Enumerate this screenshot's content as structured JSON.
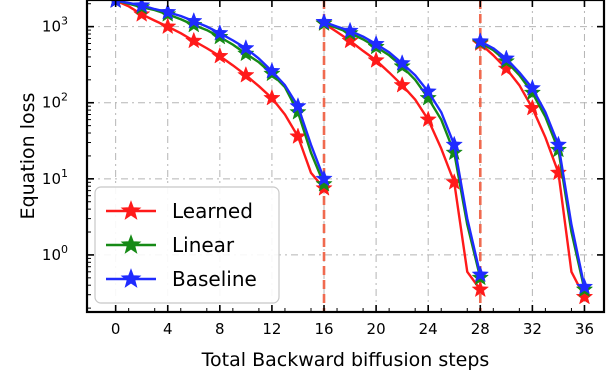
{
  "chart_data": {
    "type": "line",
    "xlabel": "Total Backward biffusion steps",
    "ylabel": "Equation loss",
    "yscale": "log",
    "xlim": [
      -2.2,
      37.5
    ],
    "ylim_log10": [
      -0.75,
      3.35
    ],
    "x_ticks": [
      0,
      4,
      8,
      12,
      16,
      20,
      24,
      28,
      32,
      36
    ],
    "y_ticks": [
      {
        "value": 1,
        "base": "10",
        "exp": "0"
      },
      {
        "value": 10,
        "base": "10",
        "exp": "1"
      },
      {
        "value": 100,
        "base": "10",
        "exp": "2"
      },
      {
        "value": 1000,
        "base": "10",
        "exp": "3"
      }
    ],
    "grid": true,
    "legend_position": "lower-left",
    "vlines": [
      {
        "x": 16,
        "color": "#f06a4f",
        "style": "dashed"
      },
      {
        "x": 28,
        "color": "#f06a4f",
        "style": "dashed"
      }
    ],
    "series": [
      {
        "name": "Learned",
        "color": "#ff1a1a",
        "segments": [
          {
            "x": [
              0,
              1,
              2,
              3,
              4,
              5,
              6,
              7,
              8,
              9,
              10,
              11,
              12,
              13,
              14,
              15,
              16
            ],
            "y": [
              2200,
              1850,
              1450,
              1200,
              1000,
              820,
              650,
              520,
              410,
              310,
              230,
              165,
              115,
              70,
              36,
              12,
              7.5
            ]
          },
          {
            "x": [
              16,
              17,
              18,
              19,
              20,
              21,
              22,
              23,
              24,
              25,
              26,
              27,
              28
            ],
            "y": [
              1100,
              850,
              650,
              480,
              360,
              250,
              170,
              110,
              60,
              25,
              9,
              0.6,
              0.35
            ]
          },
          {
            "x": [
              28,
              29,
              30,
              31,
              32,
              33,
              34,
              35,
              36
            ],
            "y": [
              600,
              420,
              280,
              170,
              85,
              35,
              12,
              0.6,
              0.28
            ]
          }
        ],
        "markers": [
          {
            "x": [
              0,
              2,
              4,
              6,
              8,
              10,
              12,
              14,
              16
            ],
            "y": [
              2200,
              1450,
              1000,
              650,
              410,
              230,
              115,
              36,
              7.5
            ]
          },
          {
            "x": [
              16,
              18,
              20,
              22,
              24,
              26,
              28
            ],
            "y": [
              1100,
              650,
              360,
              170,
              60,
              9,
              0.35
            ]
          },
          {
            "x": [
              28,
              30,
              32,
              34,
              36
            ],
            "y": [
              600,
              280,
              85,
              12,
              0.28
            ]
          }
        ]
      },
      {
        "name": "Linear",
        "color": "#168a16",
        "segments": [
          {
            "x": [
              0,
              1,
              2,
              3,
              4,
              5,
              6,
              7,
              8,
              9,
              10,
              11,
              12,
              13,
              14,
              15,
              16
            ],
            "y": [
              2200,
              2000,
              1800,
              1650,
              1450,
              1250,
              1050,
              900,
              730,
              580,
              440,
              340,
              240,
              160,
              75,
              22,
              8.5
            ]
          },
          {
            "x": [
              16,
              17,
              18,
              19,
              20,
              21,
              22,
              23,
              24,
              25,
              26,
              27,
              28
            ],
            "y": [
              1100,
              960,
              820,
              680,
              540,
              420,
              300,
              200,
              115,
              60,
              22,
              2.5,
              0.5
            ]
          },
          {
            "x": [
              28,
              29,
              30,
              31,
              32,
              33,
              34,
              35,
              36
            ],
            "y": [
              620,
              490,
              350,
              230,
              135,
              65,
              24,
              2,
              0.35
            ]
          }
        ],
        "markers": [
          {
            "x": [
              0,
              2,
              4,
              6,
              8,
              10,
              12,
              14,
              16
            ],
            "y": [
              2200,
              1800,
              1450,
              1050,
              730,
              440,
              240,
              75,
              8.5
            ]
          },
          {
            "x": [
              16,
              18,
              20,
              22,
              24,
              26,
              28
            ],
            "y": [
              1100,
              820,
              540,
              300,
              115,
              22,
              0.5
            ]
          },
          {
            "x": [
              28,
              30,
              32,
              34,
              36
            ],
            "y": [
              620,
              350,
              135,
              24,
              0.35
            ]
          }
        ]
      },
      {
        "name": "Baseline",
        "color": "#1f2bff",
        "segments": [
          {
            "x": [
              0,
              1,
              2,
              3,
              4,
              5,
              6,
              7,
              8,
              9,
              10,
              11,
              12,
              13,
              14,
              15,
              16
            ],
            "y": [
              2200,
              2050,
              1900,
              1700,
              1550,
              1380,
              1180,
              1000,
              820,
              660,
              520,
              380,
              260,
              170,
              90,
              28,
              10
            ]
          },
          {
            "x": [
              16,
              17,
              18,
              19,
              20,
              21,
              22,
              23,
              24,
              25,
              26,
              27,
              28
            ],
            "y": [
              1150,
              1000,
              880,
              740,
              590,
              460,
              330,
              230,
              140,
              75,
              28,
              3,
              0.55
            ]
          },
          {
            "x": [
              28,
              29,
              30,
              31,
              32,
              33,
              34,
              35,
              36
            ],
            "y": [
              640,
              520,
              380,
              250,
              155,
              75,
              28,
              2.5,
              0.38
            ]
          }
        ],
        "markers": [
          {
            "x": [
              0,
              2,
              4,
              6,
              8,
              10,
              12,
              14,
              16
            ],
            "y": [
              2200,
              1900,
              1550,
              1180,
              820,
              520,
              260,
              90,
              10
            ]
          },
          {
            "x": [
              16,
              18,
              20,
              22,
              24,
              26,
              28
            ],
            "y": [
              1150,
              880,
              590,
              330,
              140,
              28,
              0.55
            ]
          },
          {
            "x": [
              28,
              30,
              32,
              34,
              36
            ],
            "y": [
              640,
              380,
              155,
              28,
              0.38
            ]
          }
        ]
      }
    ]
  }
}
